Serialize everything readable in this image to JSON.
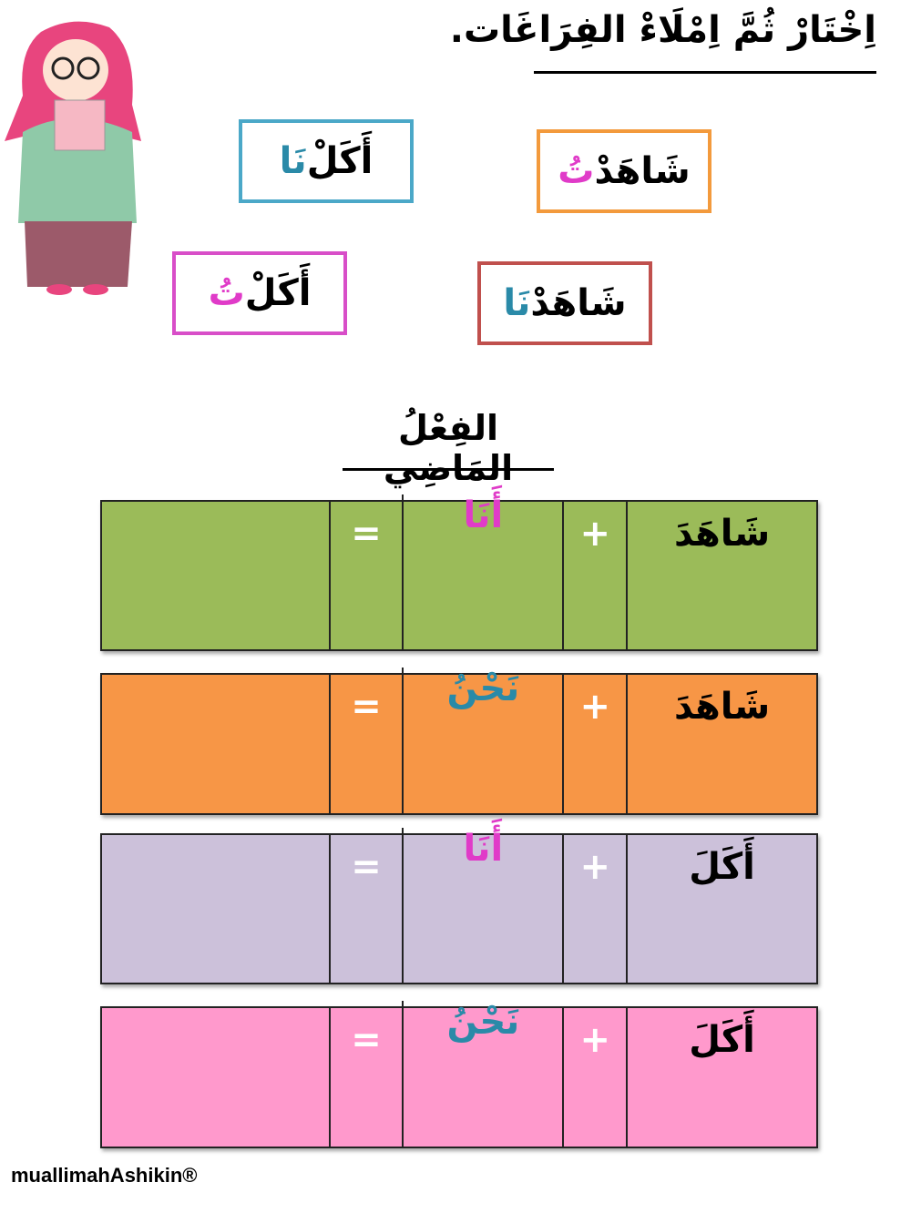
{
  "instruction": "اِخْتَارْ ثُمَّ اِمْلَاءْ الفِرَاغَات.",
  "word_bank": [
    {
      "base": "أَكَلْ",
      "suffix": "نَا",
      "border": "#4ba8c8",
      "suffix_color": "#2a8aa8"
    },
    {
      "base": "شَاهَدْ",
      "suffix": "تُ",
      "border": "#f39a3c",
      "suffix_color": "#e03bc8"
    },
    {
      "base": "أَكَلْ",
      "suffix": "تُ",
      "border": "#d84ec8",
      "suffix_color": "#e03bc8"
    },
    {
      "base": "شَاهَدْ",
      "suffix": "نَا",
      "border": "#c0504d",
      "suffix_color": "#2a8aa8"
    }
  ],
  "heading": "الفِعْلُ المَاضِي",
  "rows": [
    {
      "verb": "شَاهَدَ",
      "plus": "+",
      "pronoun": "أَنَا",
      "pronoun_color": "#e03bc8",
      "equals": "=",
      "answer": "",
      "bg": "#9bbb59"
    },
    {
      "verb": "شَاهَدَ",
      "plus": "+",
      "pronoun": "نَحْنُ",
      "pronoun_color": "#2a8aa8",
      "equals": "=",
      "answer": "",
      "bg": "#f79646"
    },
    {
      "verb": "أَكَلَ",
      "plus": "+",
      "pronoun": "أَنَا",
      "pronoun_color": "#e03bc8",
      "equals": "=",
      "answer": "",
      "bg": "#ccc1da"
    },
    {
      "verb": "أَكَلَ",
      "plus": "+",
      "pronoun": "نَحْنُ",
      "pronoun_color": "#2a8aa8",
      "equals": "=",
      "answer": "",
      "bg": "#ff99cc"
    }
  ],
  "footer": "muallimahAshikin®"
}
